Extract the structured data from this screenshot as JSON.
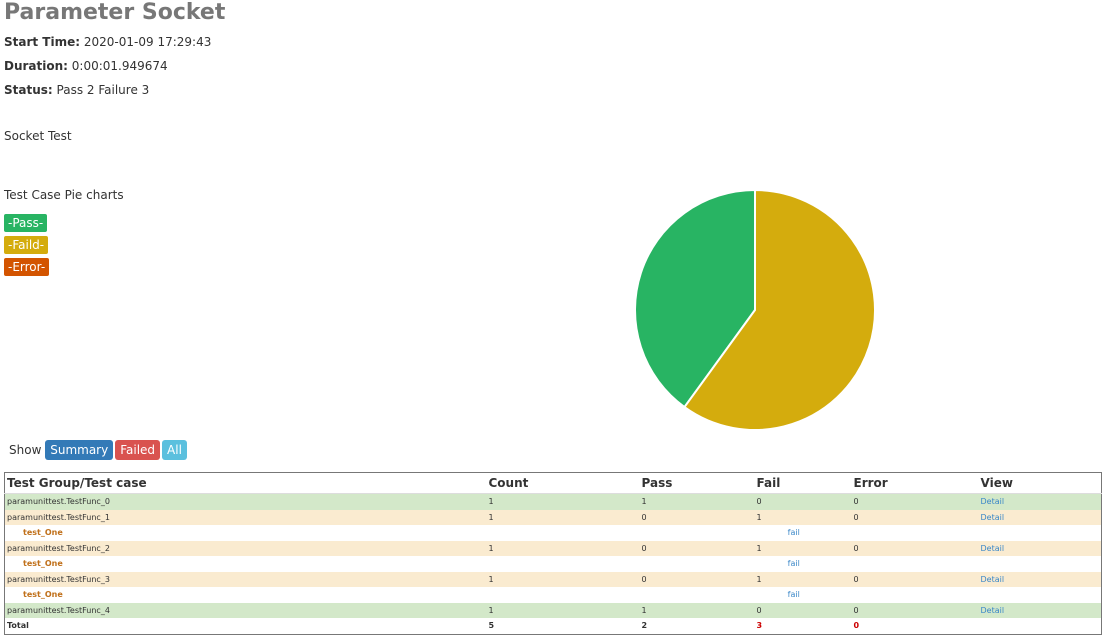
{
  "header": {
    "title": "Parameter Socket",
    "fields": [
      {
        "label": "Start Time:",
        "value": "2020-01-09 17:29:43"
      },
      {
        "label": "Duration:",
        "value": "0:00:01.949674"
      },
      {
        "label": "Status:",
        "value": "Pass 2 Failure 3"
      }
    ],
    "description": "Socket Test"
  },
  "chart_data": {
    "type": "pie",
    "title": "Test Case Pie charts",
    "categories": [
      "-Pass-",
      "-Faild-",
      "-Error-"
    ],
    "values": [
      2,
      3,
      0
    ],
    "colors": [
      "#28b463",
      "#d4ac0d",
      "#d35400"
    ]
  },
  "filter": {
    "label": "Show",
    "buttons": [
      "Summary",
      "Failed",
      "All"
    ]
  },
  "table": {
    "columns": [
      "Test Group/Test case",
      "Count",
      "Pass",
      "Fail",
      "Error",
      "View"
    ],
    "rows": [
      [
        "paramunittest.TestFunc_0",
        1,
        1,
        0,
        0,
        "Detail"
      ],
      [
        "paramunittest.TestFunc_1",
        1,
        0,
        1,
        0,
        "Detail"
      ],
      [
        "test_One",
        "fail"
      ],
      [
        "paramunittest.TestFunc_2",
        1,
        0,
        1,
        0,
        "Detail"
      ],
      [
        "test_One",
        "fail"
      ],
      [
        "paramunittest.TestFunc_3",
        1,
        0,
        1,
        0,
        "Detail"
      ],
      [
        "test_One",
        "fail"
      ],
      [
        "paramunittest.TestFunc_4",
        1,
        1,
        0,
        0,
        "Detail"
      ]
    ],
    "total": [
      "Total",
      5,
      2,
      3,
      0
    ]
  }
}
